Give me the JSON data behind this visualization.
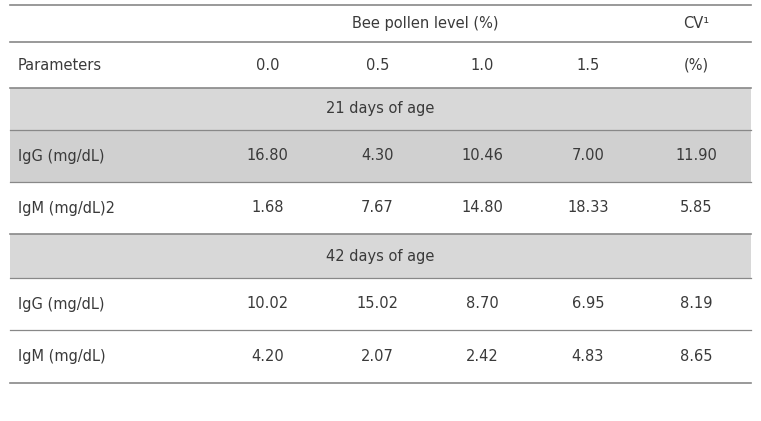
{
  "title_line1": "Bee pollen level (%)",
  "title_cv": "CV¹",
  "col_headers": [
    "Parameters",
    "0.0",
    "0.5",
    "1.0",
    "1.5",
    "(%)"
  ],
  "section1_label": "21 days of age",
  "section2_label": "42 days of age",
  "rows": [
    {
      "label": "IgG (mg/dL)",
      "values": [
        "16.80",
        "4.30",
        "10.46",
        "7.00",
        "11.90"
      ],
      "shaded": true
    },
    {
      "label": "IgM (mg/dL)2",
      "values": [
        "1.68",
        "7.67",
        "14.80",
        "18.33",
        "5.85"
      ],
      "shaded": false
    },
    {
      "label": "IgG (mg/dL)",
      "values": [
        "10.02",
        "15.02",
        "8.70",
        "6.95",
        "8.19"
      ],
      "shaded": false
    },
    {
      "label": "IgM (mg/dL)",
      "values": [
        "4.20",
        "2.07",
        "2.42",
        "4.83",
        "8.65"
      ],
      "shaded": false
    }
  ],
  "row_shaded_color": "#d0d0d0",
  "section_bg_color": "#d8d8d8",
  "white_bg": "#ffffff",
  "line_color": "#888888",
  "text_color": "#3a3a3a",
  "font_size": 10.5
}
